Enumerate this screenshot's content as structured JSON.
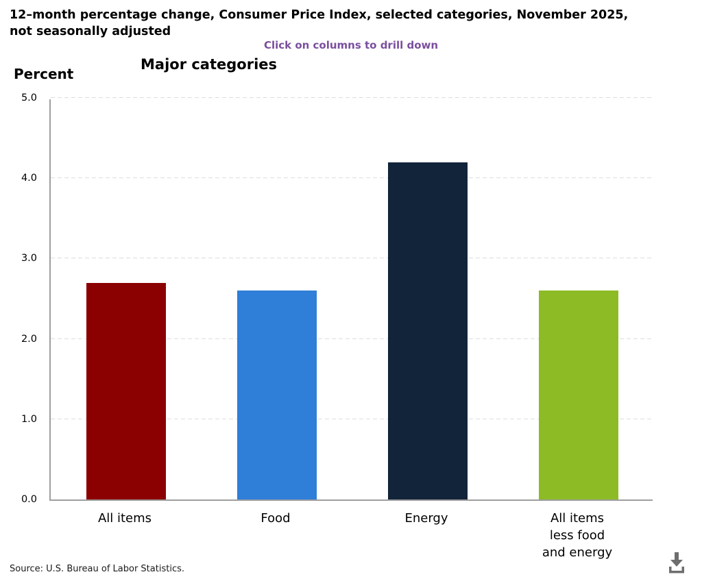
{
  "header": {
    "title_lines": [
      "12–month percentage change, Consumer Price Index, selected categories, November 2025,",
      "not seasonally adjusted"
    ],
    "subtitle": "Click on columns to drill down",
    "chart_heading": "Major categories",
    "axis_unit_label": "Percent"
  },
  "chart_data": {
    "type": "bar",
    "title": "Major categories",
    "categories": [
      "All items",
      "Food",
      "Energy",
      "All items less food and energy"
    ],
    "category_label_lines": [
      [
        "All items"
      ],
      [
        "Food"
      ],
      [
        "Energy"
      ],
      [
        "All items",
        "less food",
        "and energy"
      ]
    ],
    "values": [
      2.7,
      2.6,
      4.2,
      2.6
    ],
    "bar_colors": [
      "#8B0000",
      "#2F7ED8",
      "#12243A",
      "#8CBB26"
    ],
    "ylabel": "Percent",
    "xlabel": "",
    "ylim": [
      0,
      5
    ],
    "yticks": [
      0,
      1,
      2,
      3,
      4,
      5
    ],
    "ytick_labels": [
      "0.0",
      "1.0",
      "2.0",
      "3.0",
      "4.0",
      "5.0"
    ],
    "grid": "horizontal-dashed",
    "legend": "none",
    "columns_clickable": true
  },
  "footer": {
    "source": "Source: U.S. Bureau of Labor Statistics."
  },
  "colors": {
    "subtitle_text": "#7B4F9E",
    "axis_line": "#9E9E9E",
    "gridline": "#DDDDDD",
    "download_icon": "#6E6E6E"
  }
}
